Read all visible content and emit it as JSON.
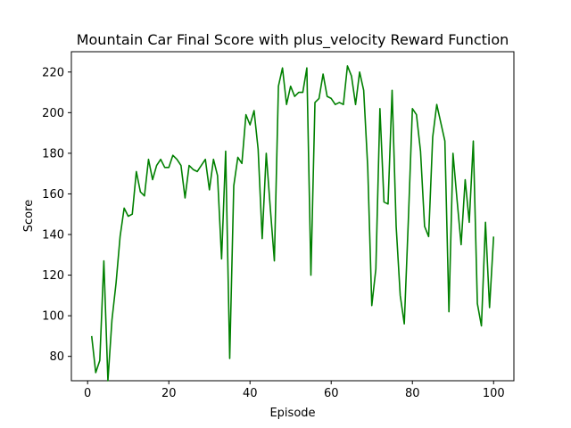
{
  "chart_data": {
    "type": "line",
    "title": "Mountain Car Final Score with plus_velocity Reward Function",
    "xlabel": "Episode",
    "ylabel": "Score",
    "xlim": [
      -4,
      105
    ],
    "ylim": [
      68,
      230
    ],
    "xticks": [
      0,
      20,
      40,
      60,
      80,
      100
    ],
    "yticks": [
      80,
      100,
      120,
      140,
      160,
      180,
      200,
      220
    ],
    "grid": false,
    "series": [
      {
        "color": "#008000",
        "x": [
          1,
          2,
          3,
          4,
          5,
          6,
          7,
          8,
          9,
          10,
          11,
          12,
          13,
          14,
          15,
          16,
          17,
          18,
          19,
          20,
          21,
          22,
          23,
          24,
          25,
          26,
          27,
          28,
          29,
          30,
          31,
          32,
          33,
          34,
          35,
          36,
          37,
          38,
          39,
          40,
          41,
          42,
          43,
          44,
          45,
          46,
          47,
          48,
          49,
          50,
          51,
          52,
          53,
          54,
          55,
          56,
          57,
          58,
          59,
          60,
          61,
          62,
          63,
          64,
          65,
          66,
          67,
          68,
          69,
          70,
          71,
          72,
          73,
          74,
          75,
          76,
          77,
          78,
          79,
          80,
          81,
          82,
          83,
          84,
          85,
          86,
          87,
          88,
          89,
          90,
          91,
          92,
          93,
          94,
          95,
          96,
          97,
          98,
          99,
          100
        ],
        "values": [
          90,
          72,
          78,
          127,
          68,
          98,
          116,
          139,
          153,
          149,
          150,
          171,
          161,
          159,
          177,
          167,
          174,
          177,
          173,
          173,
          179,
          177,
          174,
          158,
          174,
          172,
          171,
          174,
          177,
          162,
          177,
          169,
          128,
          181,
          79,
          164,
          178,
          175,
          199,
          194,
          201,
          182,
          138,
          180,
          153,
          127,
          213,
          222,
          204,
          213,
          208,
          210,
          210,
          222,
          120,
          205,
          207,
          219,
          208,
          207,
          204,
          205,
          204,
          223,
          218,
          204,
          220,
          211,
          173,
          105,
          123,
          202,
          156,
          155,
          211,
          144,
          110,
          96,
          147,
          202,
          199,
          181,
          144,
          139,
          188,
          204,
          195,
          186,
          102,
          180,
          157,
          135,
          167,
          146,
          186,
          106,
          95,
          146,
          104,
          139
        ]
      }
    ]
  }
}
